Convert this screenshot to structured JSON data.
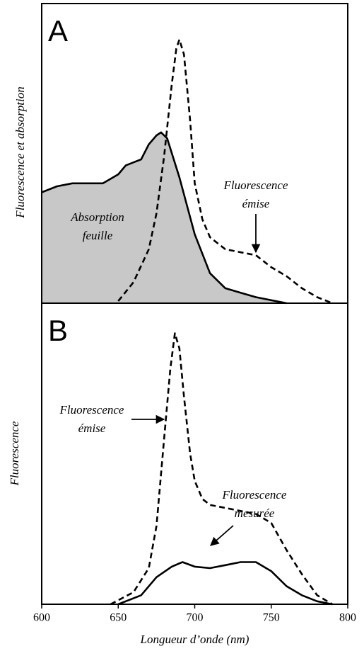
{
  "chart_data": [
    {
      "type": "line",
      "label": "A",
      "ylabel": "Fluorescence et absorption",
      "xlim": [
        600,
        800
      ],
      "ylim": [
        0,
        100
      ],
      "series": [
        {
          "style": "filled",
          "color": "#c8c8c8",
          "x": [
            600,
            610,
            620,
            630,
            640,
            650,
            655,
            660,
            665,
            670,
            675,
            678,
            682,
            690,
            700,
            710,
            720,
            730,
            740,
            750,
            760
          ],
          "values": [
            37,
            39,
            40,
            40,
            40,
            43,
            46,
            47,
            48,
            53,
            56,
            57,
            55,
            42,
            23,
            10,
            5,
            3.5,
            2,
            1,
            0
          ]
        },
        {
          "style": "dashed",
          "color": "#000000",
          "x": [
            650,
            660,
            670,
            675,
            680,
            685,
            688,
            690,
            693,
            697,
            700,
            705,
            710,
            720,
            730,
            740,
            750,
            760,
            770,
            780,
            790
          ],
          "values": [
            0.7,
            7,
            18,
            30,
            49,
            73,
            85,
            88,
            83,
            61,
            40,
            28,
            22,
            18,
            17,
            16,
            12,
            9,
            5,
            2,
            0
          ]
        }
      ],
      "annotations": [
        {
          "lines": [
            "Absorption",
            "feuille"
          ]
        },
        {
          "lines": [
            "Fluorescence",
            "émise"
          ]
        }
      ]
    },
    {
      "type": "line",
      "label": "B",
      "ylabel": "Fluorescence",
      "xlabel": "Longueur d’onde (nm)",
      "xlim": [
        600,
        800
      ],
      "ylim": [
        0,
        100
      ],
      "xticks": [
        600,
        650,
        700,
        750,
        800
      ],
      "series": [
        {
          "style": "dashed",
          "color": "#000000",
          "x": [
            645,
            660,
            670,
            675,
            680,
            684,
            687,
            690,
            693,
            697,
            700,
            705,
            710,
            720,
            730,
            740,
            750,
            760,
            770,
            780,
            790
          ],
          "values": [
            0,
            4,
            12,
            26,
            55,
            78,
            90,
            85,
            69,
            50,
            41,
            35,
            33,
            32,
            31,
            30,
            27,
            18,
            10,
            3,
            0
          ]
        },
        {
          "style": "solid",
          "color": "#000000",
          "x": [
            650,
            665,
            675,
            685,
            692,
            700,
            710,
            720,
            730,
            740,
            750,
            760,
            770,
            780,
            790
          ],
          "values": [
            0,
            3,
            9,
            12.5,
            14,
            12.5,
            12,
            13,
            14,
            14,
            11,
            6,
            3,
            1,
            0
          ]
        }
      ],
      "annotations": [
        {
          "lines": [
            "Fluorescence",
            "émise"
          ]
        },
        {
          "lines": [
            "Fluorescence",
            "mesurée"
          ]
        }
      ]
    }
  ]
}
